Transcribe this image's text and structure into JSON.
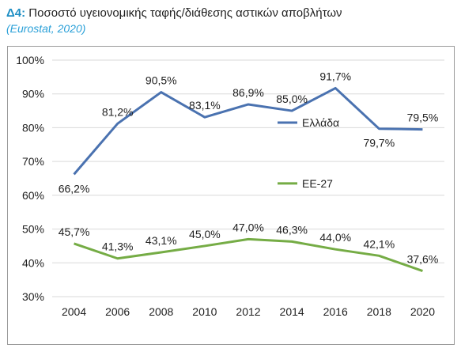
{
  "header": {
    "title_prefix": "Δ4:",
    "title_text": "Ποσοστό υγειονομικής ταφής/διάθεσης αστικών αποβλήτων",
    "subtitle": "(Eurostat, 2020)"
  },
  "colors": {
    "accent": "#1f8fc4",
    "series_greece": "#4a72b0",
    "series_eu": "#75ac45",
    "grid": "#d9d9d9",
    "text": "#1f1f1f"
  },
  "chart_data": {
    "type": "line",
    "x": [
      2004,
      2006,
      2008,
      2010,
      2012,
      2014,
      2016,
      2018,
      2020
    ],
    "x_tick_labels": [
      "2004",
      "2006",
      "2008",
      "2010",
      "2012",
      "2014",
      "2016",
      "2018",
      "2020"
    ],
    "y_tick_labels": [
      "30%",
      "40%",
      "50%",
      "60%",
      "70%",
      "80%",
      "90%",
      "100%"
    ],
    "y_ticks": [
      30,
      40,
      50,
      60,
      70,
      80,
      90,
      100
    ],
    "ylim": [
      30,
      100
    ],
    "grid": "horizontal",
    "legend_position": "right",
    "series": [
      {
        "name": "Ελλάδα",
        "color": "#4a72b0",
        "values": [
          66.2,
          81.2,
          90.5,
          83.1,
          86.9,
          85.0,
          91.7,
          79.7,
          79.5
        ],
        "labels": [
          "66,2%",
          "81,2%",
          "90,5%",
          "83,1%",
          "86,9%",
          "85,0%",
          "91,7%",
          "79,7%",
          "79,5%"
        ]
      },
      {
        "name": "ΕΕ-27",
        "color": "#75ac45",
        "values": [
          45.7,
          41.3,
          43.1,
          45.0,
          47.0,
          46.3,
          44.0,
          42.1,
          37.6
        ],
        "labels": [
          "45,7%",
          "41,3%",
          "43,1%",
          "45,0%",
          "47,0%",
          "46,3%",
          "44,0%",
          "42,1%",
          "37,6%"
        ]
      }
    ]
  }
}
